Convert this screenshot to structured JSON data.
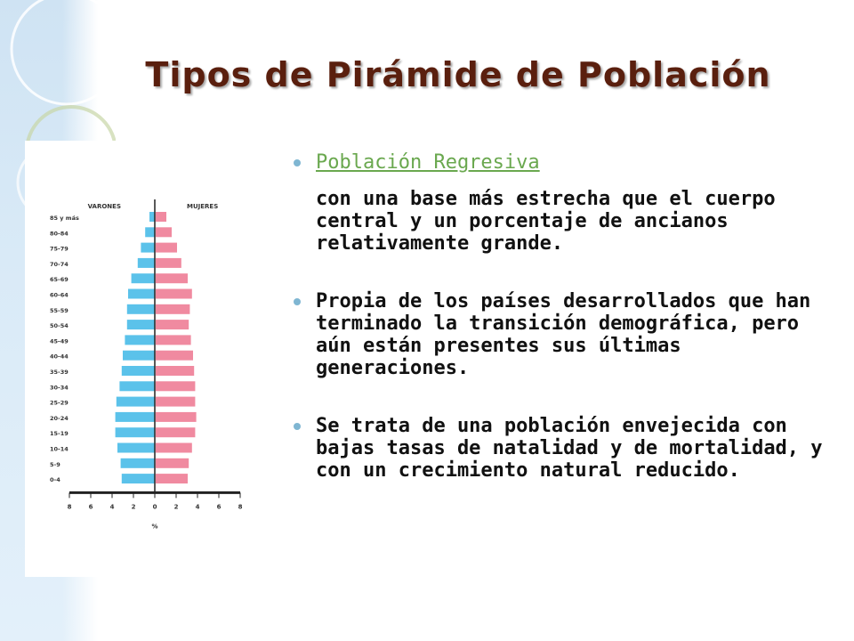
{
  "slide": {
    "title": "Tipos de Pirámide de Población",
    "bullets": [
      {
        "link_text": "Población Regresiva",
        "text": "con una base más estrecha que el cuerpo central y un porcentaje de ancianos relativamente grande."
      },
      {
        "text": "Propia de los países desarrollados que han terminado la transición demográfica, pero aún están presentes sus últimas generaciones."
      },
      {
        "text": "Se trata de una población envejecida con bajas tasas de natalidad y de mortalidad, y con un crecimiento natural reducido."
      }
    ]
  },
  "colors": {
    "title": "#5a1f0e",
    "link": "#6aa84f",
    "bullet": "#7fb6d2",
    "male": "#5bc2ea",
    "female": "#f08aa0"
  },
  "chart_data": {
    "type": "bar",
    "orientation": "horizontal",
    "categories": [
      "85 y más",
      "80-84",
      "75-79",
      "70-74",
      "65-69",
      "60-64",
      "55-59",
      "50-54",
      "45-49",
      "40-44",
      "35-39",
      "30-34",
      "25-29",
      "20-24",
      "15-19",
      "10-14",
      "5-9",
      "0-4"
    ],
    "series": [
      {
        "name": "VARONES",
        "values": [
          0.5,
          0.9,
          1.3,
          1.6,
          2.2,
          2.5,
          2.6,
          2.6,
          2.8,
          3.0,
          3.1,
          3.3,
          3.6,
          3.7,
          3.7,
          3.5,
          3.2,
          3.1
        ]
      },
      {
        "name": "MUJERES",
        "values": [
          1.0,
          1.5,
          2.0,
          2.4,
          3.0,
          3.4,
          3.2,
          3.1,
          3.3,
          3.5,
          3.6,
          3.7,
          3.7,
          3.8,
          3.7,
          3.4,
          3.1,
          3.0
        ]
      }
    ],
    "xticks": [
      "8",
      "6",
      "4",
      "2",
      "0",
      "2",
      "4",
      "6",
      "8"
    ],
    "xlabel": "%",
    "xlim": [
      -8,
      8
    ]
  }
}
